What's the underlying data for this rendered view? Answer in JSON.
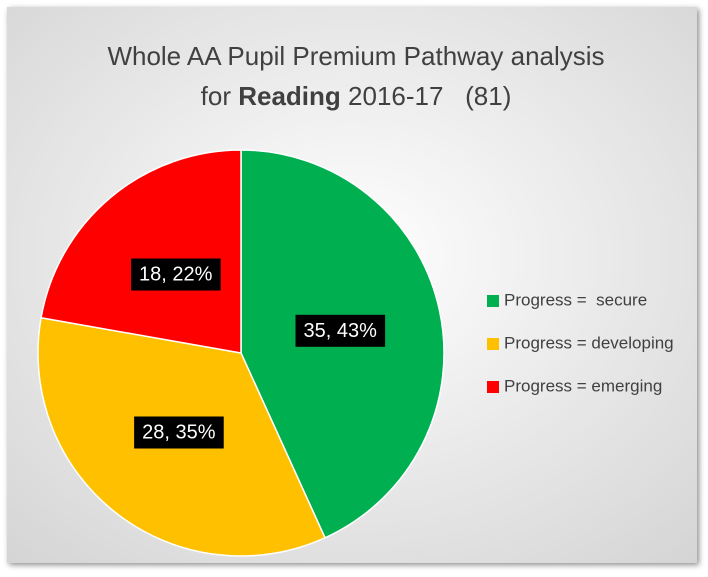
{
  "chart_data": {
    "type": "pie",
    "title": [
      "Whole AA Pupil Premium Pathway analysis",
      "for",
      "Reading",
      "2016-17   (81)"
    ],
    "categories": [
      "Progress =  secure",
      "Progress = developing",
      "Progress = emerging"
    ],
    "values": [
      35,
      28,
      18
    ],
    "value_labels": [
      "35, 43%",
      "28, 35%",
      "18, 22%"
    ],
    "colors": [
      "#00b050",
      "#ffc000",
      "#ff0000"
    ],
    "legend": "right"
  }
}
